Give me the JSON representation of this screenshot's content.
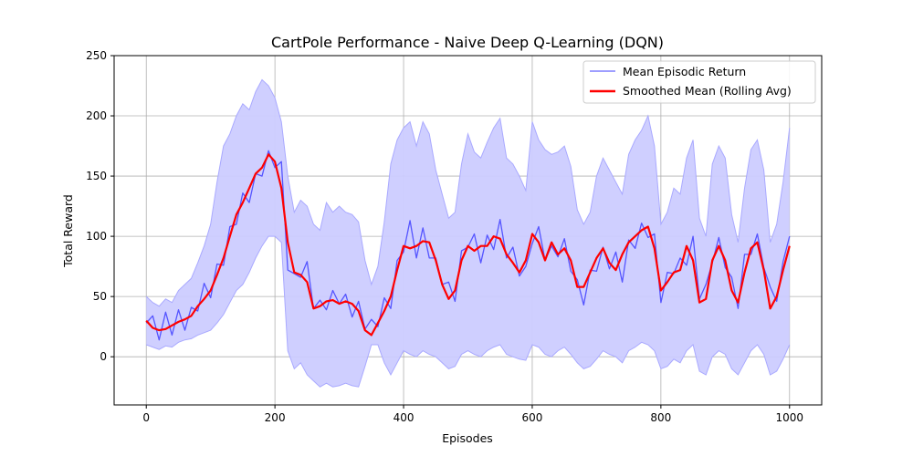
{
  "chart_data": {
    "type": "line",
    "title": "CartPole Performance - Naive Deep Q-Learning (DQN)",
    "xlabel": "Episodes",
    "ylabel": "Total Reward",
    "xlim": [
      -50,
      1050
    ],
    "ylim": [
      -40,
      250
    ],
    "xticks": [
      0,
      200,
      400,
      600,
      800,
      1000
    ],
    "yticks": [
      0,
      50,
      100,
      150,
      200,
      250
    ],
    "grid": true,
    "legend_position": "top-right",
    "colors": {
      "mean_line": "#5555ff",
      "band": "#ccccff",
      "band_edge": "#a9a9ff",
      "smoothed": "#ff0000",
      "legend_mean": "#7f7fff"
    },
    "series": [
      {
        "name": "Mean Episodic Return",
        "x": [
          0,
          10,
          20,
          30,
          40,
          50,
          60,
          70,
          80,
          90,
          100,
          110,
          120,
          130,
          140,
          150,
          160,
          170,
          180,
          190,
          200,
          210,
          220,
          230,
          240,
          250,
          260,
          270,
          280,
          290,
          300,
          310,
          320,
          330,
          340,
          350,
          360,
          370,
          380,
          390,
          400,
          410,
          420,
          430,
          440,
          450,
          460,
          470,
          480,
          490,
          500,
          510,
          520,
          530,
          540,
          550,
          560,
          570,
          580,
          590,
          600,
          610,
          620,
          630,
          640,
          650,
          660,
          670,
          680,
          690,
          700,
          710,
          720,
          730,
          740,
          750,
          760,
          770,
          780,
          790,
          800,
          810,
          820,
          830,
          840,
          850,
          860,
          870,
          880,
          890,
          900,
          910,
          920,
          930,
          940,
          950,
          960,
          970,
          980,
          990,
          1000
        ],
        "values": [
          28,
          24,
          22,
          25,
          24,
          30,
          33,
          34,
          42,
          48,
          58,
          72,
          88,
          100,
          115,
          125,
          135,
          148,
          160,
          165,
          160,
          150,
          80,
          60,
          72,
          65,
          45,
          40,
          50,
          45,
          48,
          44,
          42,
          40,
          30,
          20,
          28,
          40,
          52,
          75,
          95,
          100,
          88,
          100,
          92,
          78,
          65,
          50,
          55,
          80,
          95,
          92,
          85,
          95,
          100,
          105,
          85,
          80,
          75,
          70,
          100,
          95,
          90,
          85,
          88,
          90,
          80,
          60,
          55,
          62,
          75,
          85,
          80,
          75,
          70,
          88,
          95,
          100,
          105,
          95,
          55,
          62,
          72,
          70,
          85,
          95,
          55,
          50,
          82,
          90,
          85,
          60,
          48,
          72,
          90,
          95,
          80,
          48,
          55,
          75,
          100
        ]
      },
      {
        "name": "Smoothed Mean (Rolling Avg)",
        "x": [
          0,
          10,
          20,
          30,
          40,
          50,
          60,
          70,
          80,
          90,
          100,
          110,
          120,
          130,
          140,
          150,
          160,
          170,
          180,
          190,
          200,
          210,
          220,
          230,
          240,
          250,
          260,
          270,
          280,
          290,
          300,
          310,
          320,
          330,
          340,
          350,
          360,
          370,
          380,
          390,
          400,
          410,
          420,
          430,
          440,
          450,
          460,
          470,
          480,
          490,
          500,
          510,
          520,
          530,
          540,
          550,
          560,
          570,
          580,
          590,
          600,
          610,
          620,
          630,
          640,
          650,
          660,
          670,
          680,
          690,
          700,
          710,
          720,
          730,
          740,
          750,
          760,
          770,
          780,
          790,
          800,
          810,
          820,
          830,
          840,
          850,
          860,
          870,
          880,
          890,
          900,
          910,
          920,
          930,
          940,
          950,
          960,
          970,
          980,
          990,
          1000
        ],
        "values": [
          30,
          24,
          22,
          23,
          26,
          29,
          31,
          34,
          42,
          48,
          55,
          68,
          82,
          100,
          118,
          128,
          140,
          152,
          157,
          168,
          162,
          140,
          95,
          70,
          68,
          62,
          40,
          42,
          46,
          47,
          44,
          46,
          44,
          38,
          22,
          18,
          28,
          38,
          50,
          72,
          92,
          90,
          92,
          96,
          95,
          80,
          60,
          48,
          55,
          80,
          92,
          88,
          92,
          92,
          100,
          98,
          85,
          78,
          70,
          80,
          102,
          95,
          80,
          95,
          85,
          90,
          80,
          58,
          58,
          70,
          82,
          90,
          78,
          72,
          85,
          95,
          100,
          105,
          108,
          90,
          55,
          62,
          70,
          72,
          92,
          80,
          45,
          48,
          80,
          92,
          80,
          55,
          45,
          70,
          90,
          95,
          72,
          40,
          50,
          72,
          92
        ]
      }
    ],
    "band": {
      "x": [
        0,
        10,
        20,
        30,
        40,
        50,
        60,
        70,
        80,
        90,
        100,
        110,
        120,
        130,
        140,
        150,
        160,
        170,
        180,
        190,
        200,
        210,
        220,
        230,
        240,
        250,
        260,
        270,
        280,
        290,
        300,
        310,
        320,
        330,
        340,
        350,
        360,
        370,
        380,
        390,
        400,
        410,
        420,
        430,
        440,
        450,
        460,
        470,
        480,
        490,
        500,
        510,
        520,
        530,
        540,
        550,
        560,
        570,
        580,
        590,
        600,
        610,
        620,
        630,
        640,
        650,
        660,
        670,
        680,
        690,
        700,
        710,
        720,
        730,
        740,
        750,
        760,
        770,
        780,
        790,
        800,
        810,
        820,
        830,
        840,
        850,
        860,
        870,
        880,
        890,
        900,
        910,
        920,
        930,
        940,
        950,
        960,
        970,
        980,
        990,
        1000
      ],
      "upper": [
        50,
        45,
        42,
        48,
        45,
        55,
        60,
        65,
        78,
        92,
        110,
        145,
        175,
        185,
        200,
        210,
        205,
        220,
        230,
        225,
        215,
        195,
        150,
        120,
        130,
        125,
        110,
        105,
        128,
        120,
        125,
        120,
        118,
        112,
        80,
        60,
        75,
        112,
        160,
        180,
        190,
        195,
        175,
        195,
        185,
        155,
        135,
        115,
        120,
        160,
        185,
        170,
        165,
        178,
        190,
        198,
        165,
        160,
        150,
        138,
        195,
        180,
        172,
        168,
        170,
        175,
        158,
        122,
        110,
        120,
        150,
        165,
        155,
        145,
        135,
        168,
        180,
        188,
        200,
        175,
        110,
        120,
        140,
        135,
        165,
        180,
        115,
        100,
        160,
        175,
        165,
        118,
        95,
        140,
        172,
        180,
        155,
        95,
        110,
        145,
        190
      ],
      "lower": [
        10,
        8,
        6,
        9,
        8,
        12,
        14,
        15,
        18,
        20,
        22,
        28,
        35,
        45,
        55,
        60,
        70,
        82,
        92,
        100,
        100,
        95,
        5,
        -10,
        -5,
        -15,
        -20,
        -25,
        -22,
        -25,
        -24,
        -22,
        -24,
        -25,
        -8,
        10,
        10,
        -5,
        -15,
        -5,
        5,
        2,
        0,
        5,
        2,
        0,
        -5,
        -10,
        -8,
        2,
        5,
        2,
        0,
        5,
        8,
        10,
        2,
        0,
        -2,
        -3,
        10,
        8,
        2,
        0,
        5,
        8,
        2,
        -5,
        -10,
        -8,
        -2,
        5,
        2,
        0,
        -5,
        5,
        8,
        12,
        10,
        5,
        -10,
        -8,
        -2,
        -5,
        5,
        10,
        -12,
        -15,
        0,
        5,
        2,
        -10,
        -15,
        -5,
        5,
        10,
        2,
        -15,
        -12,
        -2,
        10
      ]
    },
    "mean_line_noise": [
      0,
      10,
      -8,
      12,
      -6,
      9,
      -11,
      7,
      -4,
      13,
      -9,
      5,
      -12,
      8,
      -5,
      11,
      -7,
      4,
      -10,
      6,
      -3,
      12,
      -8,
      9,
      -6,
      14,
      -5,
      7,
      -11,
      10,
      -4,
      8,
      -9,
      6,
      -7,
      11,
      -3,
      9,
      -12,
      5,
      -8,
      13,
      -6,
      7,
      -10,
      4,
      -5,
      12,
      -9,
      8,
      -4,
      10,
      -7,
      6,
      -11,
      9,
      -3,
      11,
      -8,
      5,
      -6,
      13,
      -10,
      7,
      -5,
      8,
      -9,
      4,
      -12,
      10,
      -4,
      6,
      -7,
      12,
      -8,
      9,
      -5,
      11,
      -6,
      7,
      -10,
      8,
      -3,
      12,
      -9,
      5,
      -7,
      10,
      -4,
      9,
      -11,
      6,
      -8,
      13,
      -5,
      7,
      -6,
      10,
      -9,
      4,
      0
    ]
  }
}
